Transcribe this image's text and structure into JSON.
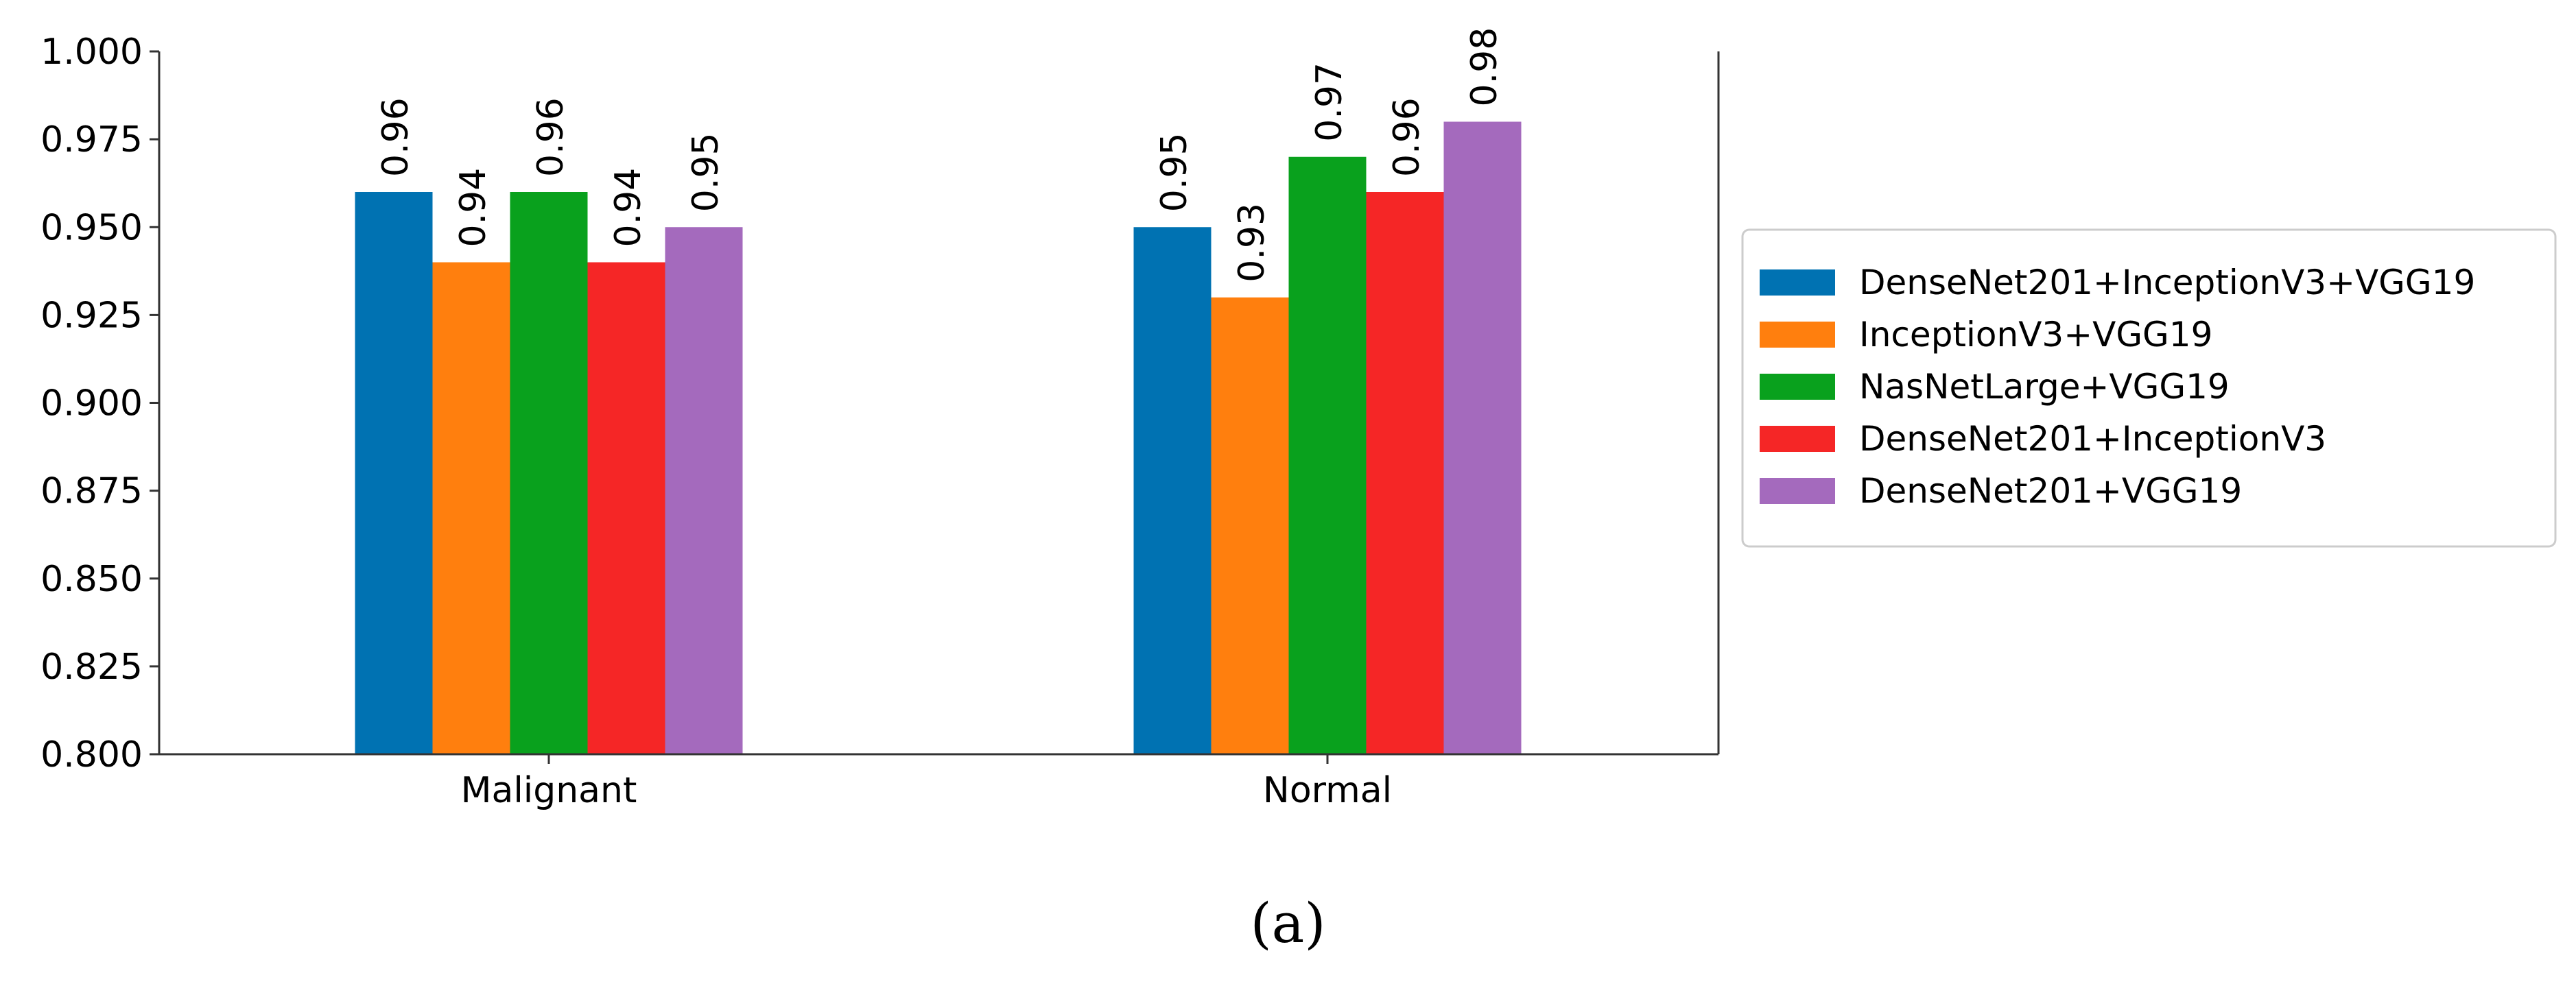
{
  "caption": "(a)",
  "chart_data": {
    "type": "bar",
    "categories": [
      "Malignant",
      "Normal"
    ],
    "series": [
      {
        "name": "DenseNet201+InceptionV3+VGG19",
        "values": [
          0.96,
          0.95
        ],
        "color": "#0072b2"
      },
      {
        "name": "InceptionV3+VGG19",
        "values": [
          0.94,
          0.93
        ],
        "color": "#ff7f0e"
      },
      {
        "name": "NasNetLarge+VGG19",
        "values": [
          0.96,
          0.97
        ],
        "color": "#09a11d"
      },
      {
        "name": "DenseNet201+InceptionV3",
        "values": [
          0.94,
          0.96
        ],
        "color": "#f52626"
      },
      {
        "name": "DenseNet201+VGG19",
        "values": [
          0.95,
          0.98
        ],
        "color": "#a46abd"
      }
    ],
    "data_labels": [
      [
        "0.96",
        "0.95"
      ],
      [
        "0.94",
        "0.93"
      ],
      [
        "0.96",
        "0.97"
      ],
      [
        "0.94",
        "0.96"
      ],
      [
        "0.95",
        "0.98"
      ]
    ],
    "y_ticks": [
      "0.800",
      "0.825",
      "0.850",
      "0.875",
      "0.900",
      "0.925",
      "0.950",
      "0.975",
      "1.000"
    ],
    "ylim": [
      0.8,
      1.0
    ],
    "title": "",
    "xlabel": "",
    "ylabel": "",
    "grid": false,
    "legend_position": "right"
  }
}
